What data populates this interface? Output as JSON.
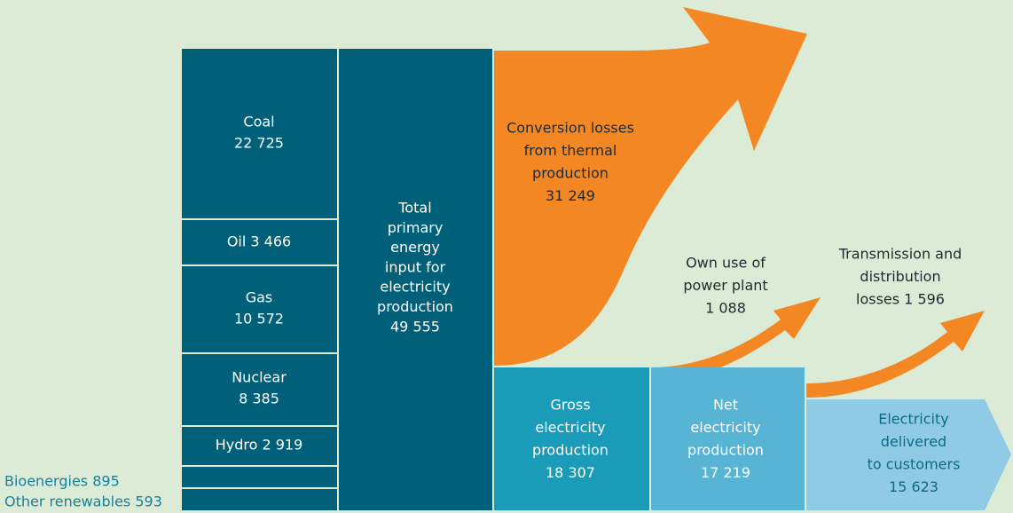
{
  "nodes": [
    {
      "lines": [
        "Coal",
        "22 725"
      ]
    },
    {
      "lines": [
        "Oil 3 466"
      ]
    },
    {
      "lines": [
        "Gas",
        "10 572"
      ]
    },
    {
      "lines": [
        "Nuclear",
        "8 385"
      ]
    },
    {
      "lines": [
        "Hydro 2 919"
      ]
    },
    {
      "lines": [
        "Bioenergies 895"
      ]
    },
    {
      "lines": [
        "Other renewables 593"
      ]
    },
    {
      "lines": [
        "Total",
        "primary",
        "energy",
        "input for",
        "electricity",
        "production",
        "49 555"
      ]
    },
    {
      "lines": [
        "Conversion losses",
        "from thermal",
        "production",
        "31 249"
      ]
    },
    {
      "lines": [
        "Own use of",
        "power plant",
        "1 088"
      ]
    },
    {
      "lines": [
        "Transmission and",
        "distribution",
        "losses 1 596"
      ]
    },
    {
      "lines": [
        "Gross",
        "electricity",
        "production",
        "18 307"
      ]
    },
    {
      "lines": [
        "Net",
        "electricity",
        "production",
        "17 219"
      ]
    },
    {
      "lines": [
        "Electricity",
        "delivered",
        "to customers",
        "15 623"
      ]
    }
  ]
}
